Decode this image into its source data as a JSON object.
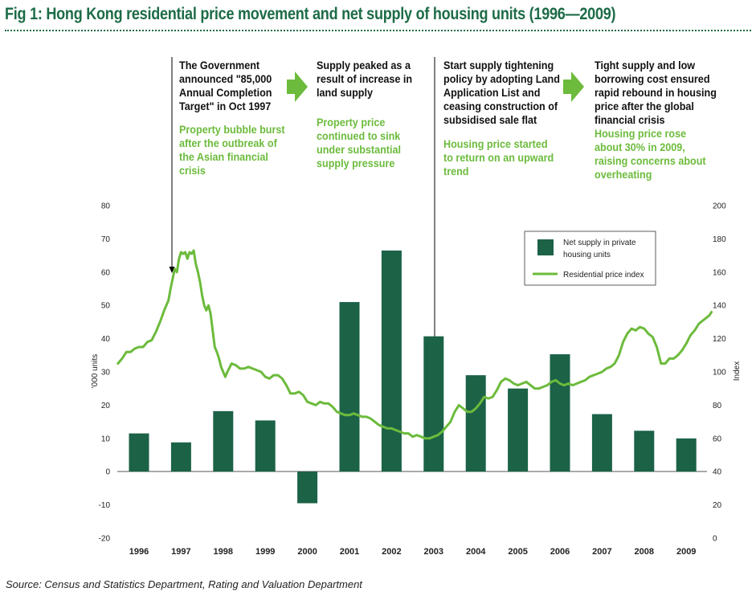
{
  "title": "Fig 1: Hong Kong residential price movement and net supply of housing units (1996—2009)",
  "annotations": [
    {
      "black": [
        "The Government",
        "announced \"85,000",
        "Annual Completion",
        "Target\" in Oct 1997"
      ],
      "green": [
        "Property bubble burst",
        "after the outbreak of",
        "the Asian financial",
        "crisis"
      ]
    },
    {
      "black": [
        "Supply peaked as a",
        "result of increase in",
        "land supply"
      ],
      "green": [
        "Property price",
        "continued to sink",
        "under substantial",
        "supply pressure"
      ]
    },
    {
      "black": [
        "Start supply tightening",
        "policy by adopting Land",
        "Application List and",
        "ceasing construction of",
        "subsidised sale flat"
      ],
      "green": [
        "Housing price started",
        "to return on an upward",
        "trend"
      ]
    },
    {
      "black": [
        "Tight supply and low",
        "borrowing cost ensured",
        "rapid rebound in housing",
        "price after the global",
        "financial crisis"
      ],
      "green": [
        "Housing price rose",
        "about 30% in 2009,",
        "raising concerns about",
        "overheating"
      ]
    }
  ],
  "source": "Source: Census and Statistics Department, Rating and Valuation Department",
  "colors": {
    "bar": "#1b6247",
    "line": "#6cbb3c",
    "title": "#1d6b47",
    "arrow": "#6cbb3c"
  },
  "chart_data": {
    "type": "bar",
    "categories": [
      "1996",
      "1997",
      "1998",
      "1999",
      "2000",
      "2001",
      "2002",
      "2003",
      "2004",
      "2005",
      "2006",
      "2007",
      "2008",
      "2009"
    ],
    "series": [
      {
        "name": "Net supply in private housing units",
        "axis": "left",
        "values": [
          11.5,
          8.8,
          18.2,
          15.4,
          -9.5,
          51.0,
          66.5,
          40.7,
          29.0,
          25.0,
          35.3,
          17.3,
          12.3,
          10.0
        ]
      },
      {
        "name": "Residential price index",
        "type": "line",
        "axis": "right",
        "points": [
          [
            1995.5,
            105
          ],
          [
            1995.6,
            108
          ],
          [
            1995.7,
            112
          ],
          [
            1995.8,
            112
          ],
          [
            1995.9,
            114
          ],
          [
            1996.0,
            115
          ],
          [
            1996.1,
            115
          ],
          [
            1996.2,
            118
          ],
          [
            1996.3,
            119
          ],
          [
            1996.4,
            124
          ],
          [
            1996.5,
            130
          ],
          [
            1996.6,
            137
          ],
          [
            1996.7,
            143
          ],
          [
            1996.75,
            150
          ],
          [
            1996.8,
            156
          ],
          [
            1996.85,
            162
          ],
          [
            1996.9,
            160
          ],
          [
            1996.95,
            168
          ],
          [
            1997.0,
            172
          ],
          [
            1997.05,
            171
          ],
          [
            1997.1,
            172
          ],
          [
            1997.15,
            168
          ],
          [
            1997.2,
            172
          ],
          [
            1997.25,
            171
          ],
          [
            1997.3,
            173
          ],
          [
            1997.35,
            165
          ],
          [
            1997.4,
            160
          ],
          [
            1997.45,
            154
          ],
          [
            1997.5,
            146
          ],
          [
            1997.55,
            140
          ],
          [
            1997.6,
            137
          ],
          [
            1997.65,
            140
          ],
          [
            1997.7,
            135
          ],
          [
            1997.75,
            125
          ],
          [
            1997.8,
            115
          ],
          [
            1997.85,
            112
          ],
          [
            1997.9,
            108
          ],
          [
            1997.95,
            103
          ],
          [
            1998.0,
            100
          ],
          [
            1998.05,
            97
          ],
          [
            1998.1,
            100
          ],
          [
            1998.2,
            105
          ],
          [
            1998.3,
            104
          ],
          [
            1998.4,
            102
          ],
          [
            1998.5,
            102
          ],
          [
            1998.6,
            103
          ],
          [
            1998.7,
            102
          ],
          [
            1998.8,
            101
          ],
          [
            1998.9,
            100
          ],
          [
            1999.0,
            97
          ],
          [
            1999.1,
            96
          ],
          [
            1999.2,
            98
          ],
          [
            1999.3,
            98
          ],
          [
            1999.4,
            96
          ],
          [
            1999.5,
            92
          ],
          [
            1999.6,
            87
          ],
          [
            1999.7,
            87
          ],
          [
            1999.8,
            88
          ],
          [
            1999.9,
            86
          ],
          [
            2000.0,
            82
          ],
          [
            2000.1,
            81
          ],
          [
            2000.2,
            80
          ],
          [
            2000.3,
            82
          ],
          [
            2000.4,
            81
          ],
          [
            2000.5,
            81
          ],
          [
            2000.6,
            79
          ],
          [
            2000.7,
            76
          ],
          [
            2000.8,
            75
          ],
          [
            2000.9,
            74
          ],
          [
            2001.0,
            74
          ],
          [
            2001.1,
            75
          ],
          [
            2001.2,
            74
          ],
          [
            2001.3,
            73
          ],
          [
            2001.4,
            73
          ],
          [
            2001.5,
            72
          ],
          [
            2001.6,
            70
          ],
          [
            2001.7,
            68
          ],
          [
            2001.8,
            67
          ],
          [
            2001.9,
            66
          ],
          [
            2002.0,
            66
          ],
          [
            2002.1,
            65
          ],
          [
            2002.2,
            64
          ],
          [
            2002.3,
            63
          ],
          [
            2002.4,
            63
          ],
          [
            2002.5,
            61
          ],
          [
            2002.6,
            62
          ],
          [
            2002.7,
            61
          ],
          [
            2002.8,
            60
          ],
          [
            2002.9,
            60
          ],
          [
            2003.0,
            61
          ],
          [
            2003.1,
            62
          ],
          [
            2003.2,
            64
          ],
          [
            2003.3,
            67
          ],
          [
            2003.4,
            70
          ],
          [
            2003.5,
            76
          ],
          [
            2003.6,
            80
          ],
          [
            2003.7,
            78
          ],
          [
            2003.8,
            76
          ],
          [
            2003.9,
            76
          ],
          [
            2004.0,
            78
          ],
          [
            2004.1,
            81
          ],
          [
            2004.2,
            85
          ],
          [
            2004.3,
            84
          ],
          [
            2004.4,
            85
          ],
          [
            2004.5,
            89
          ],
          [
            2004.6,
            94
          ],
          [
            2004.7,
            96
          ],
          [
            2004.8,
            95
          ],
          [
            2004.9,
            93
          ],
          [
            2005.0,
            92
          ],
          [
            2005.1,
            93
          ],
          [
            2005.2,
            94
          ],
          [
            2005.3,
            92
          ],
          [
            2005.4,
            90
          ],
          [
            2005.5,
            90
          ],
          [
            2005.6,
            91
          ],
          [
            2005.7,
            92
          ],
          [
            2005.8,
            94
          ],
          [
            2005.9,
            95
          ],
          [
            2006.0,
            93
          ],
          [
            2006.1,
            92
          ],
          [
            2006.2,
            93
          ],
          [
            2006.3,
            92
          ],
          [
            2006.4,
            93
          ],
          [
            2006.5,
            94
          ],
          [
            2006.6,
            95
          ],
          [
            2006.7,
            97
          ],
          [
            2006.8,
            98
          ],
          [
            2006.9,
            99
          ],
          [
            2007.0,
            100
          ],
          [
            2007.1,
            102
          ],
          [
            2007.2,
            103
          ],
          [
            2007.3,
            105
          ],
          [
            2007.4,
            110
          ],
          [
            2007.5,
            118
          ],
          [
            2007.6,
            123
          ],
          [
            2007.7,
            126
          ],
          [
            2007.8,
            125
          ],
          [
            2007.9,
            127
          ],
          [
            2008.0,
            126
          ],
          [
            2008.1,
            123
          ],
          [
            2008.2,
            121
          ],
          [
            2008.3,
            115
          ],
          [
            2008.4,
            105
          ],
          [
            2008.5,
            105
          ],
          [
            2008.6,
            108
          ],
          [
            2008.7,
            108
          ],
          [
            2008.8,
            110
          ],
          [
            2008.9,
            113
          ],
          [
            2009.0,
            117
          ],
          [
            2009.1,
            122
          ],
          [
            2009.2,
            125
          ],
          [
            2009.3,
            129
          ],
          [
            2009.4,
            131
          ],
          [
            2009.5,
            133
          ],
          [
            2009.55,
            134
          ],
          [
            2009.6,
            136
          ]
        ]
      }
    ],
    "left_axis": {
      "title": "'000 units",
      "ylim": [
        -20,
        80
      ],
      "ticks": [
        "80",
        "70",
        "60",
        "50",
        "40",
        "30",
        "20",
        "10",
        "0",
        "-10",
        "-20"
      ]
    },
    "right_axis": {
      "title": "Index",
      "ylim": [
        0,
        200
      ],
      "ticks": [
        "200",
        "180",
        "160",
        "140",
        "120",
        "100",
        "80",
        "60",
        "40",
        "20",
        "0"
      ]
    },
    "legend": {
      "position": "top-right",
      "bar_label": [
        "Net supply in private",
        "housing units"
      ],
      "line_label": "Residential price index"
    },
    "grid": false
  }
}
